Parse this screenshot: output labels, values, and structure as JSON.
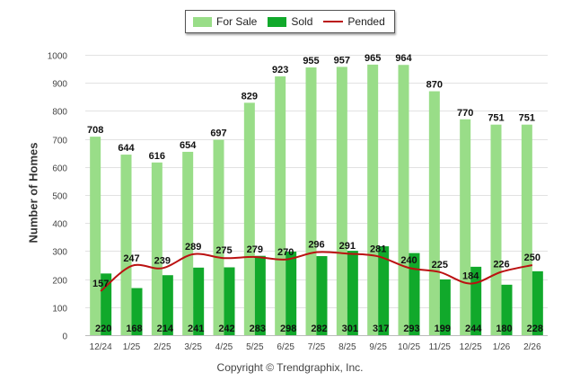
{
  "chart_data": {
    "type": "bar",
    "categories": [
      "12/24",
      "1/25",
      "2/25",
      "3/25",
      "4/25",
      "5/25",
      "6/25",
      "7/25",
      "8/25",
      "9/25",
      "10/25",
      "11/25",
      "12/25",
      "1/26",
      "2/26"
    ],
    "series": [
      {
        "name": "For Sale",
        "kind": "bar",
        "color": "#99dd88",
        "values": [
          708,
          644,
          616,
          654,
          697,
          829,
          923,
          955,
          957,
          965,
          964,
          870,
          770,
          751,
          751
        ]
      },
      {
        "name": "Sold",
        "kind": "bar",
        "color": "#11a92b",
        "values": [
          220,
          168,
          214,
          241,
          242,
          283,
          298,
          282,
          301,
          317,
          293,
          199,
          244,
          180,
          228
        ]
      },
      {
        "name": "Pended",
        "kind": "line",
        "color": "#bb1111",
        "values": [
          157,
          247,
          239,
          289,
          275,
          279,
          270,
          296,
          291,
          281,
          240,
          225,
          184,
          226,
          250
        ]
      }
    ],
    "ylabel": "Number of Homes",
    "xlabel": "",
    "ylim": [
      0,
      1000
    ],
    "yticks": [
      0,
      100,
      200,
      300,
      400,
      500,
      600,
      700,
      800,
      900,
      1000
    ],
    "legend_position": "top-center",
    "grid": true
  },
  "legend": {
    "for_sale": "For Sale",
    "sold": "Sold",
    "pended": "Pended"
  },
  "footer": "Copyright © Trendgraphix, Inc."
}
